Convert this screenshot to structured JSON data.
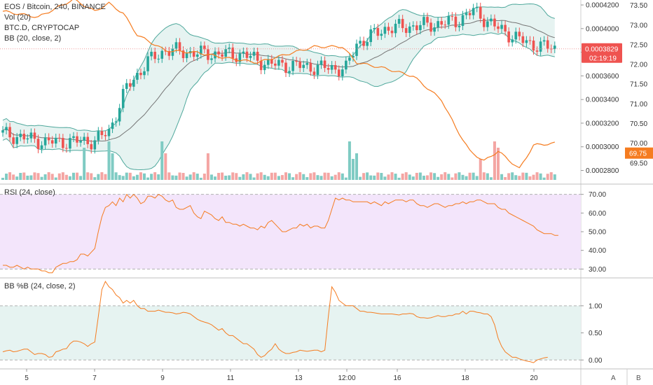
{
  "legend": {
    "main": "EOS / Bitcoin, 240, BINANCE",
    "vol": "Vol (20)",
    "btcd": "BTC.D, CRYPTOCAP",
    "bb": "BB (20, close, 2)"
  },
  "rsi_legend": "RSI (24, close)",
  "bbpct_legend": "BB %B (24, close, 2)",
  "price_tag": "0.0003829",
  "countdown_tag": "02:19:19",
  "btcd_tag": "69.75",
  "footer": {
    "a_label": "A",
    "b_label": "B"
  },
  "colors": {
    "up": "#26a69a",
    "down": "#ef5350",
    "up_vol": "#7fcbc3",
    "down_vol": "#f4a5a3",
    "bb_fill": "#e6f3f1",
    "bb_line": "#4fa89c",
    "bb_basis": "#757575",
    "btcd": "#f57c20",
    "rsi_bg": "#f3e5fb",
    "bbpct_bg": "#e6f3f1",
    "price_tag_bg": "#ef5350",
    "btcd_tag_bg": "#f57c20"
  },
  "chart_data": {
    "type": "candlestick",
    "x_ticks": [
      "5",
      "7",
      "9",
      "11",
      "13",
      "12:00",
      "16",
      "18",
      "20"
    ],
    "price_axis": {
      "ticks": [
        "0.0004200",
        "0.0004000",
        "0.0003800",
        "0.0003600",
        "0.0003400",
        "0.0003200",
        "0.0003000",
        "0.0002800"
      ],
      "range": [
        0.000272,
        0.000423
      ]
    },
    "btcd_axis": {
      "ticks": [
        "73.50",
        "73.00",
        "72.50",
        "72.00",
        "71.50",
        "71.00",
        "70.50",
        "70.00",
        "69.50"
      ],
      "range": [
        69.07,
        73.6
      ]
    },
    "rsi": {
      "ticks": [
        "70.00",
        "60.00",
        "50.00",
        "40.00",
        "30.00"
      ],
      "range": [
        26,
        74
      ],
      "band": [
        30,
        70
      ],
      "values": [
        32,
        32,
        31,
        31,
        32,
        31,
        30,
        31,
        30,
        30,
        30,
        29,
        29,
        28,
        28,
        31,
        32,
        33,
        33,
        34,
        34,
        35,
        38,
        38,
        37,
        39,
        41,
        50,
        58,
        63,
        64,
        66,
        64,
        68,
        66,
        70,
        68,
        70,
        68,
        65,
        66,
        69,
        69,
        68,
        70,
        69,
        67,
        66,
        67,
        63,
        62,
        62,
        63,
        64,
        60,
        58,
        57,
        61,
        60,
        59,
        57,
        56,
        58,
        55,
        55,
        54,
        54,
        53,
        54,
        53,
        52,
        52,
        51,
        53,
        52,
        55,
        56,
        54,
        52,
        50,
        50,
        51,
        52,
        52,
        54,
        53,
        54,
        52,
        53,
        53,
        52,
        52,
        56,
        62,
        68,
        67,
        68,
        67,
        67,
        66,
        66,
        66,
        66,
        66,
        65,
        66,
        65,
        64,
        66,
        65,
        66,
        67,
        67,
        67,
        66,
        67,
        67,
        65,
        64,
        64,
        63,
        64,
        65,
        65,
        64,
        63,
        64,
        64,
        65,
        65,
        66,
        65,
        66,
        66,
        67,
        67,
        66,
        65,
        65,
        65,
        63,
        62,
        62,
        60,
        59,
        58,
        57,
        56,
        55,
        54,
        53,
        51,
        50,
        49,
        49,
        49,
        48,
        48
      ]
    },
    "bb_pct": {
      "ticks": [
        "1.00",
        "0.50",
        "0.00"
      ],
      "range": [
        -0.1,
        1.45
      ],
      "band": [
        0,
        1
      ],
      "values": [
        0.15,
        0.17,
        0.18,
        0.15,
        0.16,
        0.18,
        0.2,
        0.2,
        0.15,
        0.1,
        0.12,
        0.12,
        0.1,
        0.05,
        0.06,
        0.15,
        0.17,
        0.2,
        0.21,
        0.3,
        0.35,
        0.35,
        0.33,
        0.3,
        0.25,
        0.3,
        0.33,
        0.8,
        1.3,
        1.45,
        1.35,
        1.3,
        1.2,
        1.15,
        1.05,
        1.1,
        1.05,
        1.1,
        1.0,
        0.95,
        0.95,
        0.9,
        0.9,
        0.9,
        0.92,
        0.9,
        0.88,
        0.88,
        0.87,
        0.85,
        0.86,
        0.88,
        0.87,
        0.85,
        0.8,
        0.75,
        0.72,
        0.7,
        0.68,
        0.65,
        0.6,
        0.55,
        0.58,
        0.5,
        0.45,
        0.45,
        0.4,
        0.35,
        0.3,
        0.3,
        0.25,
        0.2,
        0.1,
        0.05,
        0.08,
        0.15,
        0.2,
        0.3,
        0.2,
        0.15,
        0.12,
        0.12,
        0.14,
        0.15,
        0.18,
        0.17,
        0.16,
        0.17,
        0.18,
        0.18,
        0.15,
        0.18,
        0.8,
        1.35,
        1.25,
        1.1,
        1.05,
        1.0,
        1.0,
        1.0,
        0.95,
        0.9,
        0.9,
        0.88,
        0.88,
        0.87,
        0.86,
        0.85,
        0.85,
        0.85,
        0.85,
        0.84,
        0.83,
        0.85,
        0.85,
        0.86,
        0.85,
        0.8,
        0.78,
        0.78,
        0.77,
        0.78,
        0.8,
        0.82,
        0.8,
        0.8,
        0.82,
        0.82,
        0.85,
        0.85,
        0.9,
        0.85,
        0.9,
        0.9,
        0.88,
        0.87,
        0.85,
        0.85,
        0.8,
        0.65,
        0.4,
        0.25,
        0.15,
        0.1,
        0.05,
        0.05,
        0.02,
        0.0,
        -0.02,
        -0.03,
        -0.05,
        0.0,
        0.02,
        0.04,
        0.05
      ]
    }
  }
}
